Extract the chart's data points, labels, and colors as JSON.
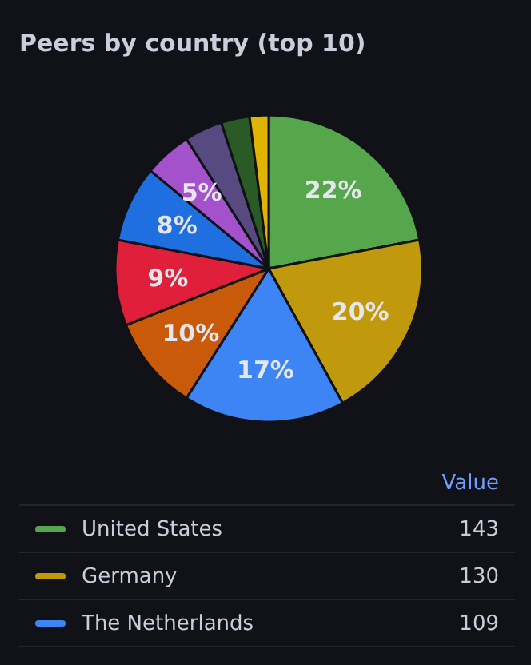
{
  "chart_data": {
    "type": "pie",
    "title": "Peers by country (top 10)",
    "legend_title": "Value",
    "legend": "bottom",
    "categories": [
      "United States",
      "Germany",
      "The Netherlands",
      null,
      null,
      null,
      null,
      null,
      null,
      null
    ],
    "values": [
      22,
      20,
      17,
      10,
      9,
      8,
      5,
      4,
      3,
      2
    ],
    "annotations": [
      "143",
      "130",
      "109"
    ],
    "value_labels": [
      "22%",
      "20%",
      "17%",
      "10%",
      "9%",
      "8%",
      "5%",
      null,
      null,
      null
    ],
    "colors": [
      "#56a64b",
      "#c09a0c",
      "#3d85f5",
      "#c95a0a",
      "#e0203a",
      "#1f6fe0",
      "#a352cc",
      "#574a80",
      "#2a5a25",
      "#e0b400"
    ]
  }
}
